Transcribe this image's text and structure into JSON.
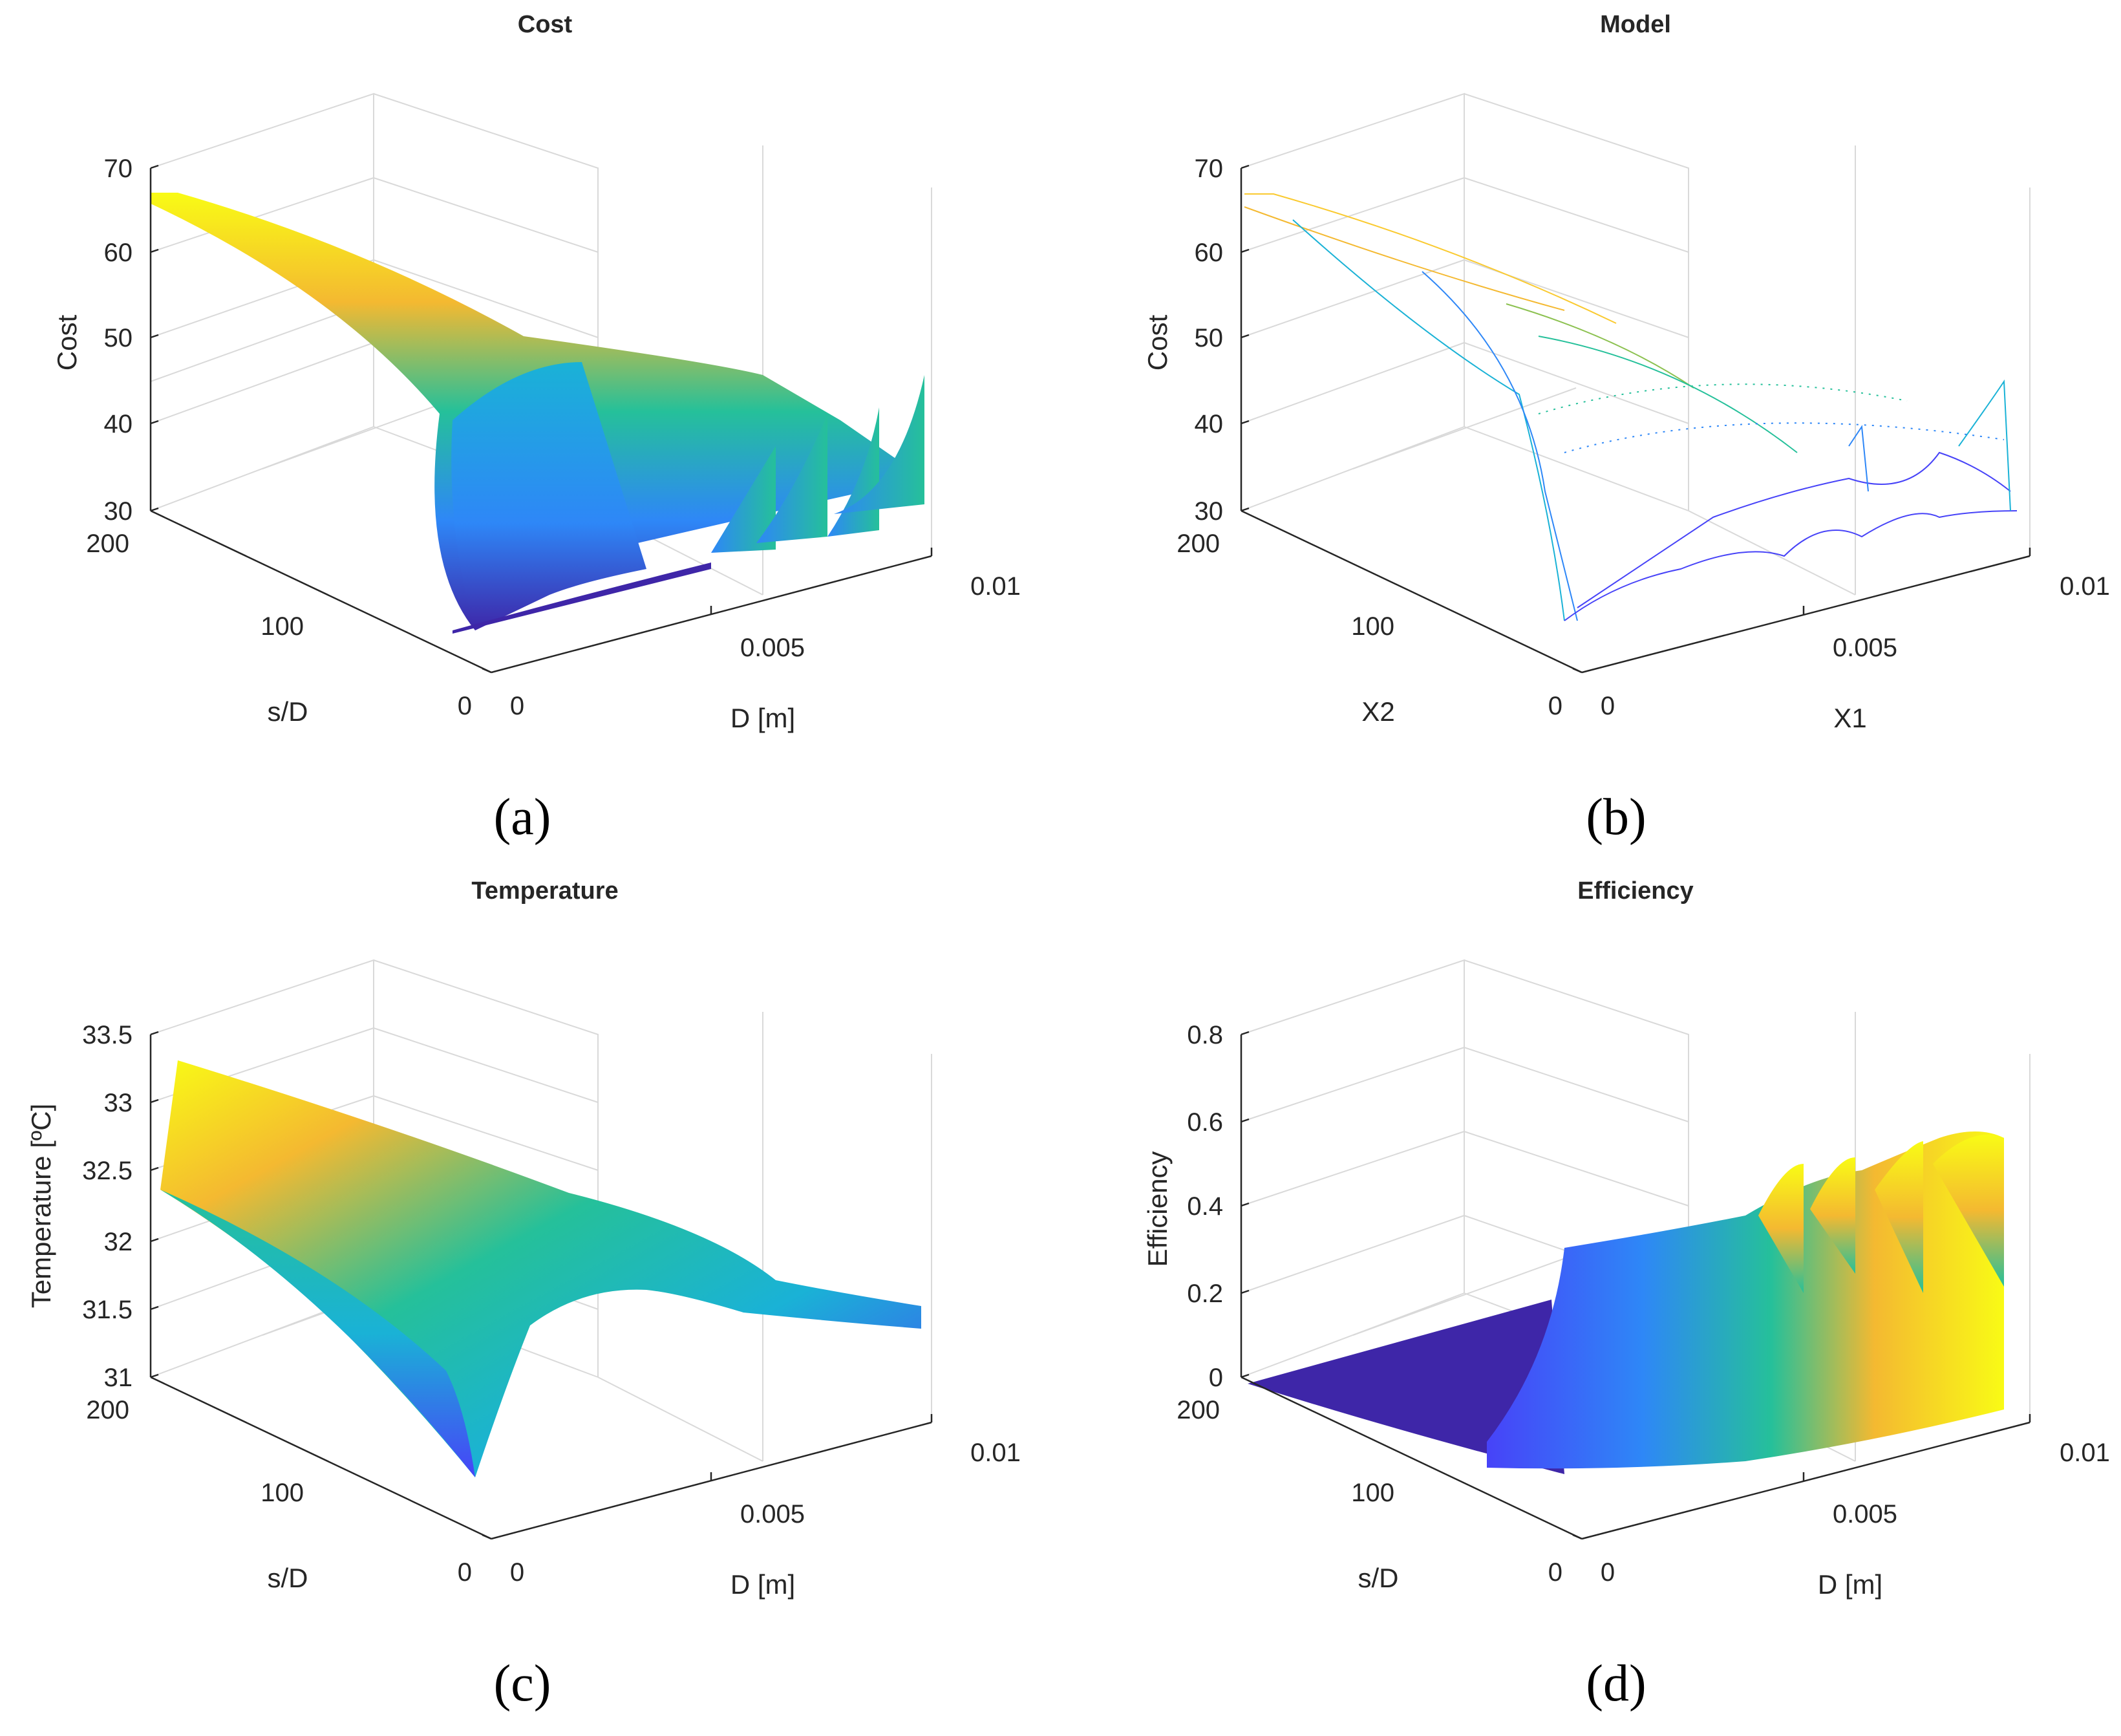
{
  "colormap": "parula",
  "colormap_stops": [
    "#3e26a8",
    "#4743f8",
    "#2e87f7",
    "#1ab2d6",
    "#25c09a",
    "#8cc150",
    "#f4b931",
    "#faca30",
    "#f9fb15"
  ],
  "chart_data": [
    {
      "type": "surface",
      "title": "Cost",
      "caption": "(a)",
      "xlabel": "D [m]",
      "ylabel": "s/D",
      "zlabel": "Cost",
      "xlim": [
        0,
        0.01
      ],
      "ylim": [
        0,
        200
      ],
      "zlim": [
        30,
        70
      ],
      "xticks": [
        "0",
        "0.005",
        "0.01"
      ],
      "yticks": [
        "0",
        "100",
        "200"
      ],
      "zticks": [
        "30",
        "40",
        "50",
        "60",
        "70"
      ],
      "render": "solid",
      "points": [
        {
          "x": 0.0,
          "y": 200,
          "z": 66
        },
        {
          "x": 0.0025,
          "y": 100,
          "z": 55
        },
        {
          "x": 0.0035,
          "y": 10,
          "z": 32
        },
        {
          "x": 0.0055,
          "y": 10,
          "z": 36
        },
        {
          "x": 0.006,
          "y": 10,
          "z": 45
        },
        {
          "x": 0.008,
          "y": 10,
          "z": 47
        },
        {
          "x": 0.01,
          "y": 10,
          "z": 40
        }
      ]
    },
    {
      "type": "surface",
      "title": "Model",
      "caption": "(b)",
      "xlabel": "X1",
      "ylabel": "X2",
      "zlabel": "Cost",
      "xlim": [
        0,
        0.01
      ],
      "ylim": [
        0,
        200
      ],
      "zlim": [
        30,
        70
      ],
      "xticks": [
        "0",
        "0.005",
        "0.01"
      ],
      "yticks": [
        "0",
        "100",
        "200"
      ],
      "zticks": [
        "30",
        "40",
        "50",
        "60",
        "70"
      ],
      "render": "mesh",
      "points": [
        {
          "x": 0.0,
          "y": 200,
          "z": 66
        },
        {
          "x": 0.0025,
          "y": 100,
          "z": 55
        },
        {
          "x": 0.0035,
          "y": 10,
          "z": 32
        },
        {
          "x": 0.006,
          "y": 10,
          "z": 40
        },
        {
          "x": 0.009,
          "y": 10,
          "z": 36
        },
        {
          "x": 0.01,
          "y": 10,
          "z": 45
        }
      ]
    },
    {
      "type": "surface",
      "title": "Temperature",
      "caption": "(c)",
      "xlabel": "D [m]",
      "ylabel": "s/D",
      "zlabel": "Temperature [ºC]",
      "xlim": [
        0,
        0.01
      ],
      "ylim": [
        0,
        200
      ],
      "zlim": [
        31,
        33.5
      ],
      "xticks": [
        "0",
        "0.005",
        "0.01"
      ],
      "yticks": [
        "0",
        "100",
        "200"
      ],
      "zticks": [
        "31",
        "31.5",
        "32",
        "32.5",
        "33",
        "33.5"
      ],
      "render": "solid",
      "points": [
        {
          "x": 0.0,
          "y": 200,
          "z": 33.2
        },
        {
          "x": 0.0,
          "y": 200,
          "z": 32.4
        },
        {
          "x": 0.0035,
          "y": 10,
          "z": 31.1
        },
        {
          "x": 0.006,
          "y": 10,
          "z": 31.6
        },
        {
          "x": 0.01,
          "y": 10,
          "z": 31.5
        }
      ]
    },
    {
      "type": "surface",
      "title": "Efficiency",
      "caption": "(d)",
      "xlabel": "D [m]",
      "ylabel": "s/D",
      "zlabel": "Efficiency",
      "xlim": [
        0,
        0.01
      ],
      "ylim": [
        0,
        200
      ],
      "zlim": [
        0,
        0.8
      ],
      "xticks": [
        "0",
        "0.005",
        "0.01"
      ],
      "yticks": [
        "0",
        "100",
        "200"
      ],
      "zticks": [
        "0",
        "0.2",
        "0.4",
        "0.6",
        "0.8"
      ],
      "render": "solid",
      "points": [
        {
          "x": 0.0,
          "y": 200,
          "z": 0.0
        },
        {
          "x": 0.003,
          "y": 10,
          "z": 0.0
        },
        {
          "x": 0.0035,
          "y": 10,
          "z": 0.32
        },
        {
          "x": 0.006,
          "y": 10,
          "z": 0.45
        },
        {
          "x": 0.008,
          "y": 10,
          "z": 0.5
        },
        {
          "x": 0.01,
          "y": 10,
          "z": 0.55
        }
      ]
    }
  ]
}
